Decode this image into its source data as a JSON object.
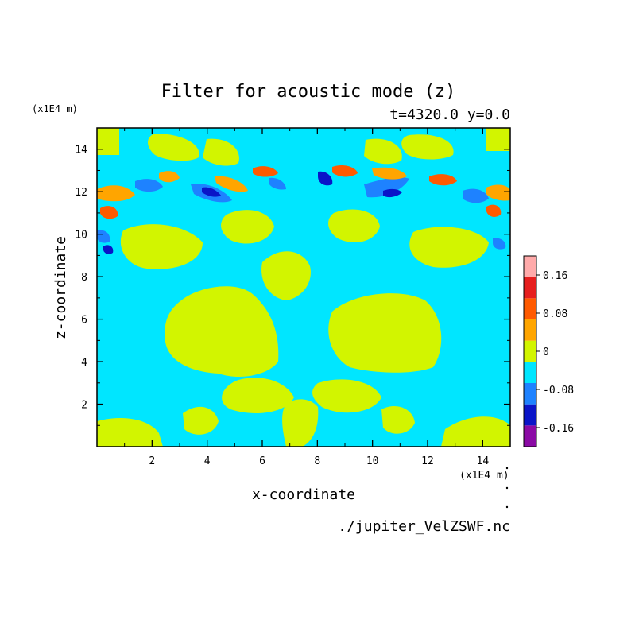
{
  "chart_data": {
    "type": "heatmap",
    "title": "Filter for acoustic mode (z)",
    "subtitle": "t=4320.0 y=0.0",
    "xlabel": "x-coordinate",
    "ylabel": "z-coordinate",
    "x_unit": "(x1E4 m)",
    "y_unit": "(x1E4 m)",
    "xlim": [
      0,
      15
    ],
    "ylim": [
      0,
      15
    ],
    "x_ticks": [
      "2",
      "4",
      "6",
      "8",
      "10",
      "12",
      "14"
    ],
    "y_ticks": [
      "2",
      "4",
      "6",
      "8",
      "10",
      "12",
      "14"
    ],
    "colorbar": {
      "levels": [
        -0.2,
        -0.16,
        -0.12,
        -0.08,
        -0.04,
        0,
        0.04,
        0.08,
        0.12,
        0.16,
        0.2
      ],
      "colors": [
        "#8b0aa5",
        "#0a14c8",
        "#1e82ff",
        "#00e6ff",
        "#d2f500",
        "#ffa500",
        "#ff5a00",
        "#e61e1e",
        "#ffaaaa"
      ],
      "tick_labels": [
        "0.16",
        "0.08",
        "0",
        "-0.08",
        "-0.16"
      ]
    },
    "source": "./jupiter_VelZSWF.nc"
  }
}
